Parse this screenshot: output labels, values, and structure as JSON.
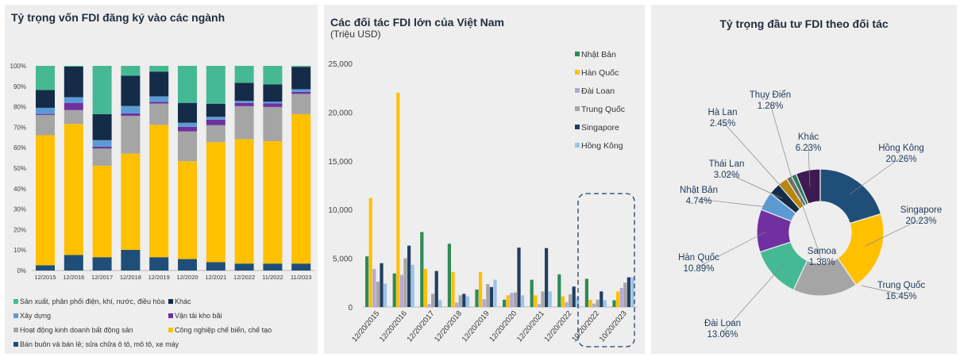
{
  "chart_data": [
    {
      "type": "bar",
      "stacked": true,
      "title": "Tỷ trọng vốn FDI đăng ký vào các ngành",
      "categories": [
        "12/2015",
        "12/2016",
        "12/2017",
        "12/2018",
        "12/2019",
        "12/2020",
        "12/2021",
        "12/2022",
        "11/2022",
        "11/2023"
      ],
      "yticks": [
        "0%",
        "10%",
        "20%",
        "30%",
        "40%",
        "50%",
        "60%",
        "70%",
        "80%",
        "90%",
        "100%"
      ],
      "ylim": [
        0,
        100
      ],
      "series": [
        {
          "name": "Bán buôn và bán lẻ; sửa chữa ô tô, mô tô, xe máy",
          "color": "#1f4e79",
          "values": [
            2.6,
            7.6,
            6.5,
            10.1,
            6.5,
            5.6,
            4.1,
            3.4,
            3.4,
            3.4
          ]
        },
        {
          "name": "Công nghiệp chế biến, chế tạo",
          "color": "#ffc000",
          "values": [
            63.5,
            64.0,
            44.7,
            47.0,
            64.7,
            47.8,
            58.6,
            60.8,
            59.8,
            73.0
          ]
        },
        {
          "name": "Hoạt động kinh doanh bất động sản",
          "color": "#a5a5a5",
          "values": [
            9.9,
            6.8,
            8.4,
            18.5,
            10.4,
            14.6,
            8.3,
            16.1,
            16.7,
            9.9
          ]
        },
        {
          "name": "Vận tải kho bãi",
          "color": "#7030a0",
          "values": [
            0.5,
            3.5,
            0.9,
            1.2,
            0.8,
            2.2,
            2.7,
            1.6,
            1.7,
            1.0
          ]
        },
        {
          "name": "Xây dựng",
          "color": "#5b9bd5",
          "values": [
            3.0,
            2.8,
            3.2,
            3.6,
            2.7,
            2.0,
            1.4,
            1.0,
            0.9,
            1.3
          ]
        },
        {
          "name": "Khác",
          "color": "#142c48",
          "values": [
            8.7,
            14.9,
            12.7,
            14.8,
            12.1,
            9.7,
            6.4,
            8.8,
            8.4,
            10.9
          ]
        },
        {
          "name": "Sản xuất, phân phối điện, khí, nước, điều hòa",
          "color": "#45b994",
          "values": [
            11.8,
            0.4,
            23.6,
            4.8,
            2.8,
            18.1,
            18.5,
            8.3,
            9.1,
            0.5
          ]
        }
      ],
      "legend_order": [
        6,
        5,
        4,
        3,
        2,
        1,
        0
      ]
    },
    {
      "type": "bar",
      "title": "Các đối tác FDI lớn của Việt Nam",
      "subtitle": "(Triệu USD)",
      "categories": [
        "12/20/2015",
        "12/20/2016",
        "12/20/2017",
        "12/20/2018",
        "12/20/2019",
        "12/20/2020",
        "12/20/2021",
        "12/20/2022",
        "10/20/2022",
        "10/20/2023"
      ],
      "yticks": [
        "0",
        "5,000",
        "10,000",
        "15,000",
        "20,000",
        "25,000"
      ],
      "ylim": [
        0,
        25000
      ],
      "legend": "top-right",
      "series": [
        {
          "name": "Nhật Bản",
          "color": "#2e8b57",
          "values": [
            5200,
            3450,
            7700,
            6500,
            1800,
            750,
            2800,
            3350,
            2900,
            700
          ]
        },
        {
          "name": "Hàn Quốc",
          "color": "#ffc000",
          "values": [
            11200,
            22000,
            3900,
            3600,
            3600,
            1200,
            1200,
            1100,
            750,
            1600
          ]
        },
        {
          "name": "Đài Loan",
          "color": "#b4a7d6",
          "values": [
            3900,
            3300,
            300,
            450,
            800,
            1450,
            300,
            500,
            350,
            1950
          ]
        },
        {
          "name": "Trung Quốc",
          "color": "#a5a5a5",
          "values": [
            2600,
            5000,
            1350,
            1200,
            2350,
            1500,
            1600,
            1300,
            750,
            2500
          ]
        },
        {
          "name": "Singapore",
          "color": "#1f3f63",
          "values": [
            4500,
            6300,
            3700,
            1350,
            2050,
            6100,
            6050,
            2100,
            1600,
            3050
          ]
        },
        {
          "name": "Hồng Kông",
          "color": "#9dc3e6",
          "values": [
            2400,
            4350,
            700,
            1100,
            2800,
            1200,
            1600,
            1050,
            700,
            3050
          ]
        }
      ]
    },
    {
      "type": "pie",
      "donut": true,
      "title": "Tỷ trọng đầu tư FDI theo đối tác",
      "slices": [
        {
          "label": "Hồng Kông",
          "value": "20.26%",
          "v": 20.26,
          "color": "#1f4e79"
        },
        {
          "label": "Singapore",
          "value": "20.23%",
          "v": 20.23,
          "color": "#ffc000"
        },
        {
          "label": "Trung Quốc",
          "value": "16.45%",
          "v": 16.45,
          "color": "#a5a5a5"
        },
        {
          "label": "Đài Loan",
          "value": "13.06%",
          "v": 13.06,
          "color": "#45b994"
        },
        {
          "label": "Hàn Quốc",
          "value": "10.89%",
          "v": 10.89,
          "color": "#7030a0"
        },
        {
          "label": "Nhật Bản",
          "value": "4.74%",
          "v": 4.74,
          "color": "#5b9bd5"
        },
        {
          "label": "Thái Lan",
          "value": "3.02%",
          "v": 3.02,
          "color": "#142c48"
        },
        {
          "label": "Hà Lan",
          "value": "2.45%",
          "v": 2.45,
          "color": "#b8860b"
        },
        {
          "label": "Samoa",
          "value": "1.38%",
          "v": 1.38,
          "color": "#6b6b6b"
        },
        {
          "label": "Thụy Điển",
          "value": "1.28%",
          "v": 1.28,
          "color": "#2e7d5b"
        },
        {
          "label": "Khác",
          "value": "6.23%",
          "v": 6.23,
          "color": "#3d1a4f"
        }
      ]
    }
  ]
}
